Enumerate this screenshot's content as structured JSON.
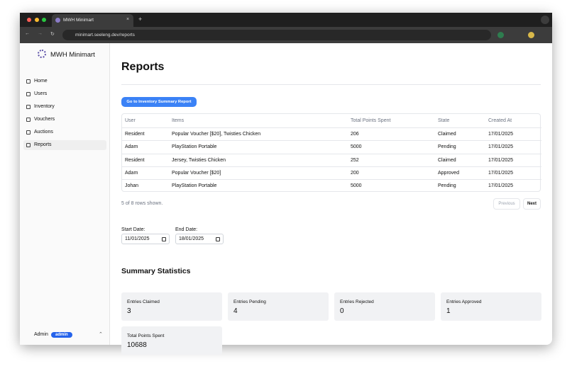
{
  "browser": {
    "tab_title": "MWH Minimart",
    "url": "minimart.seeleng.dev/reports"
  },
  "sidebar": {
    "brand": "MWH Minimart",
    "nav": [
      "Home",
      "Users",
      "Inventory",
      "Vouchers",
      "Auctions",
      "Reports"
    ],
    "user": "Admin",
    "role_badge": "admin"
  },
  "page": {
    "title": "Reports",
    "button": "Go to Inventory Summary Report",
    "table": {
      "headers": [
        "User",
        "Items",
        "Total Points Spent",
        "State",
        "Created At"
      ],
      "rows": [
        [
          "Resident",
          "Popular Voucher [$20], Twisties Chicken",
          "206",
          "Claimed",
          "17/01/2025"
        ],
        [
          "Adam",
          "PlayStation Portable",
          "5000",
          "Pending",
          "17/01/2025"
        ],
        [
          "Resident",
          "Jersey, Twisties Chicken",
          "252",
          "Claimed",
          "17/01/2025"
        ],
        [
          "Adam",
          "Popular Voucher [$20]",
          "200",
          "Approved",
          "17/01/2025"
        ],
        [
          "Johan",
          "PlayStation Portable",
          "5000",
          "Pending",
          "17/01/2025"
        ]
      ]
    },
    "pagination": {
      "status": "5 of 8 rows shown.",
      "previous": "Previous",
      "next": "Next"
    },
    "filters": {
      "start_label": "Start Date:",
      "start_value": "11/01/2025",
      "end_label": "End Date:",
      "end_value": "18/01/2025"
    },
    "summary": {
      "title": "Summary Statistics",
      "cards": [
        {
          "label": "Entries Claimed",
          "value": "3"
        },
        {
          "label": "Entries Pending",
          "value": "4"
        },
        {
          "label": "Entries Rejected",
          "value": "0"
        },
        {
          "label": "Entries Approved",
          "value": "1"
        },
        {
          "label": "Total Points Spent",
          "value": "10688"
        }
      ]
    }
  }
}
